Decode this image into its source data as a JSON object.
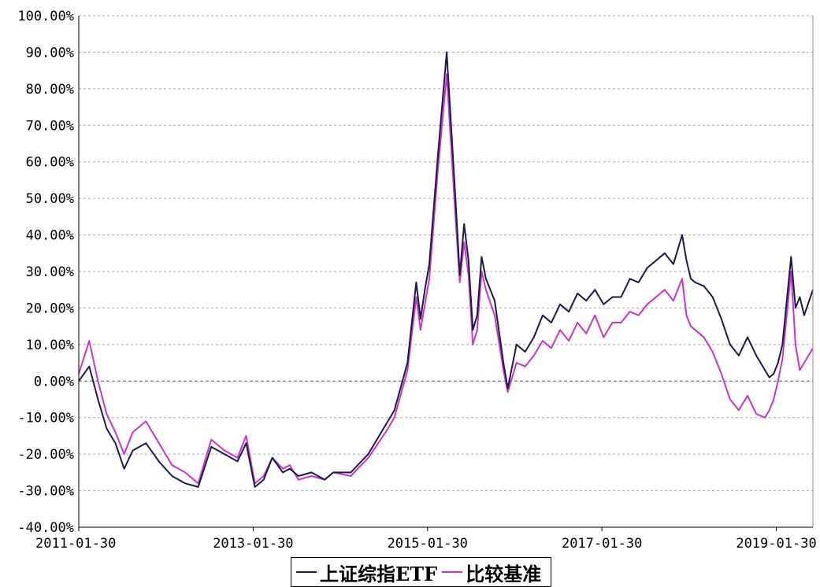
{
  "chart_data": {
    "type": "line",
    "yticks": [
      "100.00%",
      "90.00%",
      "80.00%",
      "70.00%",
      "60.00%",
      "50.00%",
      "40.00%",
      "30.00%",
      "20.00%",
      "10.00%",
      "0.00%",
      "-10.00%",
      "-20.00%",
      "-30.00%",
      "-40.00%"
    ],
    "xticks": [
      "2011-01-30",
      "2013-01-30",
      "2015-01-30",
      "2017-01-30",
      "2019-01-30"
    ],
    "ylim": [
      -40,
      100
    ],
    "xlim": [
      2011.08,
      2019.5
    ],
    "grid": true,
    "legend_position": "bottom",
    "series": [
      {
        "name": "上证综指ETF",
        "color": "#1a1a4d",
        "x": [
          2011.08,
          2011.2,
          2011.3,
          2011.4,
          2011.5,
          2011.6,
          2011.7,
          2011.85,
          2012.0,
          2012.15,
          2012.3,
          2012.45,
          2012.6,
          2012.75,
          2012.9,
          2013.0,
          2013.1,
          2013.2,
          2013.3,
          2013.42,
          2013.5,
          2013.6,
          2013.75,
          2013.9,
          2014.0,
          2014.2,
          2014.4,
          2014.6,
          2014.7,
          2014.85,
          2014.95,
          2015.0,
          2015.05,
          2015.1,
          2015.2,
          2015.3,
          2015.4,
          2015.45,
          2015.5,
          2015.55,
          2015.6,
          2015.65,
          2015.7,
          2015.75,
          2015.85,
          2015.95,
          2016.0,
          2016.1,
          2016.2,
          2016.3,
          2016.4,
          2016.5,
          2016.6,
          2016.7,
          2016.8,
          2016.9,
          2017.0,
          2017.1,
          2017.2,
          2017.3,
          2017.4,
          2017.5,
          2017.6,
          2017.7,
          2017.8,
          2017.9,
          2018.0,
          2018.05,
          2018.1,
          2018.15,
          2018.25,
          2018.35,
          2018.45,
          2018.55,
          2018.65,
          2018.75,
          2018.85,
          2018.95,
          2019.0,
          2019.05,
          2019.1,
          2019.15,
          2019.2,
          2019.25,
          2019.3,
          2019.35,
          2019.4,
          2019.5
        ],
        "y": [
          0,
          4,
          -5,
          -13,
          -17,
          -24,
          -19,
          -17,
          -22,
          -26,
          -28,
          -29,
          -18,
          -20,
          -22,
          -17,
          -29,
          -27,
          -21,
          -25,
          -24,
          -26,
          -25,
          -27,
          -25,
          -25,
          -20,
          -12,
          -8,
          5,
          27,
          17,
          25,
          32,
          62,
          90,
          50,
          29,
          43,
          33,
          14,
          18,
          34,
          28,
          22,
          5,
          -2,
          10,
          8,
          12,
          18,
          16,
          21,
          19,
          24,
          22,
          25,
          21,
          23,
          23,
          28,
          27,
          31,
          33,
          35,
          32,
          40,
          33,
          28,
          27,
          26,
          23,
          17,
          10,
          7,
          12,
          7,
          3,
          1,
          2,
          5,
          10,
          22,
          34,
          20,
          23,
          18,
          25
        ]
      },
      {
        "name": "比较基准",
        "color": "#cc33cc",
        "x": [
          2011.08,
          2011.2,
          2011.3,
          2011.4,
          2011.5,
          2011.6,
          2011.7,
          2011.85,
          2012.0,
          2012.15,
          2012.3,
          2012.45,
          2012.6,
          2012.75,
          2012.9,
          2013.0,
          2013.1,
          2013.2,
          2013.3,
          2013.42,
          2013.5,
          2013.6,
          2013.75,
          2013.9,
          2014.0,
          2014.2,
          2014.4,
          2014.6,
          2014.7,
          2014.85,
          2014.95,
          2015.0,
          2015.05,
          2015.1,
          2015.2,
          2015.3,
          2015.4,
          2015.45,
          2015.5,
          2015.55,
          2015.6,
          2015.65,
          2015.7,
          2015.75,
          2015.85,
          2015.95,
          2016.0,
          2016.1,
          2016.2,
          2016.3,
          2016.4,
          2016.5,
          2016.6,
          2016.7,
          2016.8,
          2016.9,
          2017.0,
          2017.1,
          2017.2,
          2017.3,
          2017.4,
          2017.5,
          2017.6,
          2017.7,
          2017.8,
          2017.9,
          2018.0,
          2018.05,
          2018.1,
          2018.15,
          2018.25,
          2018.35,
          2018.45,
          2018.55,
          2018.65,
          2018.75,
          2018.85,
          2018.95,
          2019.0,
          2019.05,
          2019.1,
          2019.15,
          2019.2,
          2019.25,
          2019.3,
          2019.35,
          2019.4,
          2019.5
        ],
        "y": [
          2,
          11,
          0,
          -9,
          -14,
          -20,
          -14,
          -11,
          -17,
          -23,
          -25,
          -28,
          -16,
          -19,
          -21,
          -15,
          -28,
          -26,
          -21,
          -24,
          -23,
          -27,
          -26,
          -27,
          -25,
          -26,
          -21,
          -14,
          -10,
          3,
          23,
          14,
          21,
          28,
          58,
          84,
          45,
          27,
          38,
          29,
          10,
          14,
          30,
          25,
          18,
          3,
          -3,
          5,
          4,
          7,
          11,
          9,
          14,
          11,
          16,
          13,
          18,
          12,
          16,
          16,
          19,
          18,
          21,
          23,
          25,
          22,
          28,
          18,
          15,
          14,
          12,
          8,
          2,
          -5,
          -8,
          -4,
          -9,
          -10,
          -8,
          -5,
          0,
          6,
          18,
          30,
          10,
          3,
          5,
          9
        ]
      }
    ]
  }
}
